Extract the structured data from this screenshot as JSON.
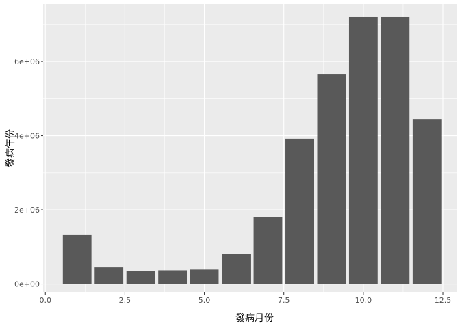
{
  "chart_data": {
    "type": "bar",
    "title": "",
    "xlabel": "發病月份",
    "ylabel": "發病年份",
    "x": [
      1,
      2,
      3,
      4,
      5,
      6,
      7,
      8,
      9,
      10,
      11,
      12
    ],
    "values": [
      1320000,
      450000,
      350000,
      370000,
      390000,
      820000,
      1800000,
      3920000,
      5650000,
      7200000,
      7200000,
      4450000
    ],
    "xlim": [
      -0.07,
      12.93
    ],
    "ylim": [
      -230000,
      7550000
    ],
    "xticks": [
      0,
      2.5,
      5,
      7.5,
      10,
      12.5
    ],
    "xtick_labels": [
      "0.0",
      "2.5",
      "5.0",
      "7.5",
      "10.0",
      "12.5"
    ],
    "yticks": [
      0,
      2000000,
      4000000,
      6000000
    ],
    "ytick_labels": [
      "0e+00",
      "2e+06",
      "4e+06",
      "6e+06"
    ],
    "grid": true,
    "panel_color": "#ebebeb",
    "grid_color": "#ffffff",
    "bar_color": "#595959"
  }
}
